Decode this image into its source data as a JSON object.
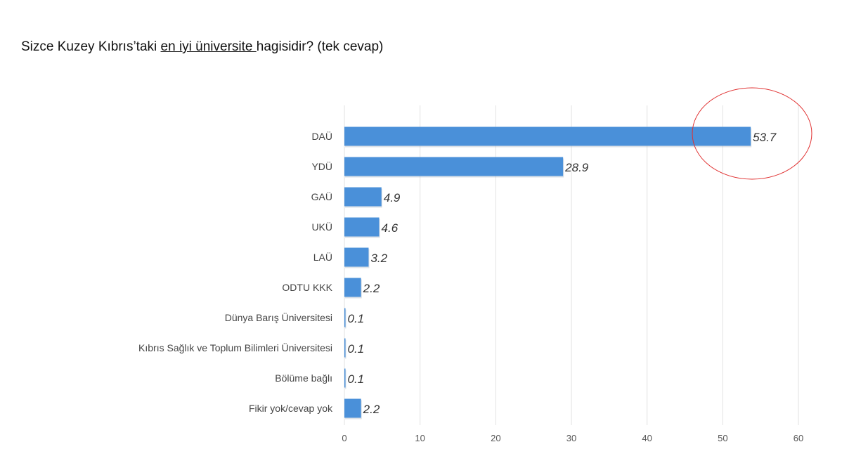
{
  "chart_data": {
    "type": "bar",
    "orientation": "horizontal",
    "title_parts": {
      "before": "Sizce Kuzey Kıbrıs’taki ",
      "underlined": "en iyi üniversite ",
      "after": "hagisidir? (tek cevap)"
    },
    "categories": [
      "DAÜ",
      "YDÜ",
      "GAÜ",
      "UKÜ",
      "LAÜ",
      "ODTU KKK",
      "Dünya Barış Üniversitesi",
      "Kıbrıs Sağlık ve Toplum Bilimleri Üniversitesi",
      "Bölüme bağlı",
      "Fikir yok/cevap yok"
    ],
    "values": [
      53.7,
      28.9,
      4.9,
      4.6,
      3.2,
      2.2,
      0.1,
      0.1,
      0.1,
      2.2
    ],
    "value_labels": [
      "53.7",
      "28.9",
      "4.9",
      "4.6",
      "3.2",
      "2.2",
      "0.1",
      "0.1",
      "0.1",
      "2.2"
    ],
    "xlim": [
      0,
      60
    ],
    "xticks": [
      "0",
      "10",
      "20",
      "30",
      "40",
      "50",
      "60"
    ],
    "grid": true,
    "bar_color": "#4a90d9",
    "highlight_color": "#e03030",
    "highlighted_category": "DAÜ"
  }
}
